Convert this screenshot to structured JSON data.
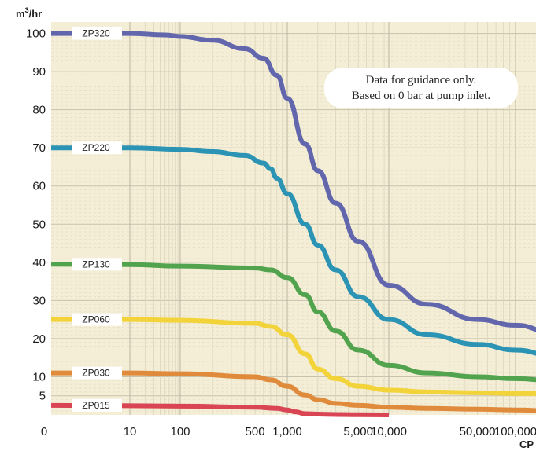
{
  "chart_data": {
    "type": "line",
    "xlabel": "CP",
    "ylabel": "m³/hr",
    "ylabel_base": "m",
    "ylabel_sup": "3",
    "ylabel_rest": "/hr",
    "x_scale": "log",
    "xlim": [
      2,
      200000
    ],
    "ylim": [
      0,
      103
    ],
    "x_ticks": [
      {
        "value": 10,
        "label": "10"
      },
      {
        "value": 100,
        "label": "100"
      },
      {
        "value": 500,
        "label": "500"
      },
      {
        "value": 1000,
        "label": "1,000"
      },
      {
        "value": 5000,
        "label": "5,000"
      },
      {
        "value": 10000,
        "label": "10,000"
      },
      {
        "value": 50000,
        "label": "50,000"
      },
      {
        "value": 100000,
        "label": "100,000"
      }
    ],
    "x_origin_label": "0",
    "y_ticks": [
      5,
      10,
      20,
      30,
      40,
      50,
      60,
      70,
      80,
      90,
      100
    ],
    "grid": true,
    "background_color": "#f4eed6",
    "note_lines": [
      "Data for guidance only.",
      "Based on 0 bar at pump inlet."
    ],
    "series": [
      {
        "name": "ZP320",
        "color": "#6166ad",
        "x": [
          2,
          10,
          50,
          100,
          200,
          400,
          600,
          800,
          1000,
          1500,
          2000,
          3000,
          5000,
          10000,
          20000,
          50000,
          100000,
          200000
        ],
        "y": [
          100,
          100,
          99.6,
          99.2,
          98.2,
          96,
          93.5,
          89,
          83,
          71,
          64,
          55.5,
          45.5,
          34,
          29,
          25,
          23.5,
          21.5
        ]
      },
      {
        "name": "ZP220",
        "color": "#2b93b4",
        "x": [
          2,
          10,
          100,
          200,
          400,
          600,
          700,
          800,
          1000,
          1500,
          2000,
          3000,
          5000,
          10000,
          20000,
          50000,
          100000,
          200000
        ],
        "y": [
          70,
          70,
          69.6,
          69,
          68,
          66,
          64.5,
          62,
          58,
          50,
          44.5,
          38,
          31,
          25,
          21,
          18.5,
          17,
          15.5
        ]
      },
      {
        "name": "ZP130",
        "color": "#52a34e",
        "x": [
          2,
          10,
          100,
          500,
          700,
          1000,
          1500,
          2000,
          3000,
          5000,
          10000,
          20000,
          50000,
          100000,
          200000
        ],
        "y": [
          39.5,
          39.4,
          39,
          38.5,
          38,
          36,
          31.5,
          27,
          22,
          17,
          13,
          11,
          10,
          9.5,
          9
        ]
      },
      {
        "name": "ZP060",
        "color": "#f2d33a",
        "x": [
          2,
          10,
          100,
          500,
          700,
          1000,
          1500,
          2000,
          3000,
          5000,
          10000,
          20000,
          50000,
          100000,
          200000
        ],
        "y": [
          25,
          25,
          24.8,
          24,
          23.2,
          21,
          16,
          12,
          9.5,
          7.5,
          6.5,
          6,
          5.8,
          5.6,
          5.5
        ]
      },
      {
        "name": "ZP030",
        "color": "#e08a3b",
        "x": [
          2,
          10,
          100,
          500,
          700,
          1000,
          1500,
          2000,
          3000,
          5000,
          10000,
          20000,
          50000,
          100000,
          200000
        ],
        "y": [
          11,
          11,
          10.8,
          10,
          9.2,
          7.5,
          5.2,
          4,
          3,
          2.5,
          2,
          1.7,
          1.5,
          1.3,
          1
        ]
      },
      {
        "name": "ZP015",
        "color": "#d94552",
        "x": [
          2,
          10,
          100,
          500,
          800,
          1000,
          1200,
          1500,
          2000,
          3000,
          5000,
          10000
        ],
        "y": [
          2.5,
          2.4,
          2.3,
          2,
          1.7,
          1.3,
          0.8,
          0.3,
          0.2,
          0.1,
          0.05,
          0
        ]
      }
    ]
  }
}
